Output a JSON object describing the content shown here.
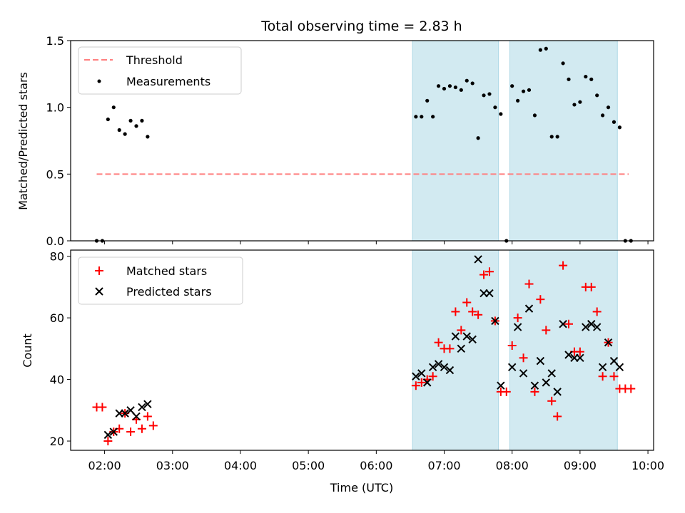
{
  "chart_data": [
    {
      "type": "scatter",
      "title": "Total observing time = 2.83 h",
      "ylabel": "Matched/Predicted stars",
      "ylim": [
        0,
        1.5
      ],
      "yticks": [
        "0.0",
        "0.5",
        "1.0",
        "1.5"
      ],
      "shaded_intervals": [
        [
          "06:32",
          "07:48"
        ],
        [
          "07:58",
          "09:33"
        ]
      ],
      "shade_color": "#add8e6",
      "threshold": {
        "name": "Threshold",
        "y": 0.5,
        "x_range": [
          "01:53",
          "09:43"
        ],
        "color": "#ff7f7f"
      },
      "series": [
        {
          "name": "Measurements",
          "marker": "dot",
          "color": "#000000",
          "points": [
            [
              "01:53",
              0.0
            ],
            [
              "01:58",
              0.0
            ],
            [
              "02:03",
              0.91
            ],
            [
              "02:08",
              1.0
            ],
            [
              "02:13",
              0.83
            ],
            [
              "02:18",
              0.8
            ],
            [
              "02:23",
              0.9
            ],
            [
              "02:28",
              0.86
            ],
            [
              "02:33",
              0.9
            ],
            [
              "02:38",
              0.78
            ],
            [
              "06:35",
              0.93
            ],
            [
              "06:40",
              0.93
            ],
            [
              "06:45",
              1.05
            ],
            [
              "06:50",
              0.93
            ],
            [
              "06:55",
              1.16
            ],
            [
              "07:00",
              1.14
            ],
            [
              "07:05",
              1.16
            ],
            [
              "07:10",
              1.15
            ],
            [
              "07:15",
              1.13
            ],
            [
              "07:20",
              1.2
            ],
            [
              "07:25",
              1.18
            ],
            [
              "07:30",
              0.77
            ],
            [
              "07:35",
              1.09
            ],
            [
              "07:40",
              1.1
            ],
            [
              "07:45",
              1.0
            ],
            [
              "07:50",
              0.95
            ],
            [
              "07:55",
              0.0
            ],
            [
              "08:00",
              1.16
            ],
            [
              "08:05",
              1.05
            ],
            [
              "08:10",
              1.12
            ],
            [
              "08:15",
              1.13
            ],
            [
              "08:20",
              0.94
            ],
            [
              "08:25",
              1.43
            ],
            [
              "08:30",
              1.44
            ],
            [
              "08:35",
              0.78
            ],
            [
              "08:40",
              0.78
            ],
            [
              "08:45",
              1.33
            ],
            [
              "08:50",
              1.21
            ],
            [
              "08:55",
              1.02
            ],
            [
              "09:00",
              1.04
            ],
            [
              "09:05",
              1.23
            ],
            [
              "09:10",
              1.21
            ],
            [
              "09:15",
              1.09
            ],
            [
              "09:20",
              0.94
            ],
            [
              "09:25",
              1.0
            ],
            [
              "09:30",
              0.89
            ],
            [
              "09:35",
              0.85
            ],
            [
              "09:40",
              0.0
            ],
            [
              "09:45",
              0.0
            ]
          ]
        }
      ],
      "legend": "top-left"
    },
    {
      "type": "scatter",
      "xlabel": "Time (UTC)",
      "ylabel": "Count",
      "xlim": [
        "01:30",
        "10:05"
      ],
      "xticks": [
        "02:00",
        "03:00",
        "04:00",
        "05:00",
        "06:00",
        "07:00",
        "08:00",
        "09:00",
        "10:00"
      ],
      "ylim": [
        17,
        82
      ],
      "yticks": [
        "20",
        "40",
        "60",
        "80"
      ],
      "shaded_intervals": [
        [
          "06:32",
          "07:48"
        ],
        [
          "07:58",
          "09:33"
        ]
      ],
      "shade_color": "#add8e6",
      "series": [
        {
          "name": "Matched stars",
          "marker": "plus",
          "color": "#ff0000",
          "points": [
            [
              "01:53",
              31
            ],
            [
              "01:58",
              31
            ],
            [
              "02:03",
              20
            ],
            [
              "02:08",
              23
            ],
            [
              "02:13",
              24
            ],
            [
              "02:18",
              29
            ],
            [
              "02:23",
              23
            ],
            [
              "02:28",
              27
            ],
            [
              "02:33",
              24
            ],
            [
              "02:38",
              28
            ],
            [
              "02:43",
              25
            ],
            [
              "06:35",
              38
            ],
            [
              "06:40",
              39
            ],
            [
              "06:45",
              40
            ],
            [
              "06:50",
              41
            ],
            [
              "06:55",
              52
            ],
            [
              "07:00",
              50
            ],
            [
              "07:05",
              50
            ],
            [
              "07:10",
              62
            ],
            [
              "07:15",
              56
            ],
            [
              "07:20",
              65
            ],
            [
              "07:25",
              62
            ],
            [
              "07:30",
              61
            ],
            [
              "07:35",
              74
            ],
            [
              "07:40",
              75
            ],
            [
              "07:45",
              59
            ],
            [
              "07:50",
              36
            ],
            [
              "07:55",
              36
            ],
            [
              "08:00",
              51
            ],
            [
              "08:05",
              60
            ],
            [
              "08:10",
              47
            ],
            [
              "08:15",
              71
            ],
            [
              "08:20",
              36
            ],
            [
              "08:25",
              66
            ],
            [
              "08:30",
              56
            ],
            [
              "08:35",
              33
            ],
            [
              "08:40",
              28
            ],
            [
              "08:45",
              77
            ],
            [
              "08:50",
              58
            ],
            [
              "08:55",
              49
            ],
            [
              "09:00",
              49
            ],
            [
              "09:05",
              70
            ],
            [
              "09:10",
              70
            ],
            [
              "09:15",
              62
            ],
            [
              "09:20",
              41
            ],
            [
              "09:25",
              52
            ],
            [
              "09:30",
              41
            ],
            [
              "09:35",
              37
            ],
            [
              "09:40",
              37
            ],
            [
              "09:45",
              37
            ]
          ]
        },
        {
          "name": "Predicted stars",
          "marker": "x",
          "color": "#000000",
          "points": [
            [
              "02:03",
              22
            ],
            [
              "02:08",
              23
            ],
            [
              "02:13",
              29
            ],
            [
              "02:18",
              29
            ],
            [
              "02:23",
              30
            ],
            [
              "02:28",
              28
            ],
            [
              "02:33",
              31
            ],
            [
              "02:38",
              32
            ],
            [
              "06:35",
              41
            ],
            [
              "06:40",
              42
            ],
            [
              "06:45",
              39
            ],
            [
              "06:50",
              44
            ],
            [
              "06:55",
              45
            ],
            [
              "07:00",
              44
            ],
            [
              "07:05",
              43
            ],
            [
              "07:10",
              54
            ],
            [
              "07:15",
              50
            ],
            [
              "07:20",
              54
            ],
            [
              "07:25",
              53
            ],
            [
              "07:30",
              79
            ],
            [
              "07:35",
              68
            ],
            [
              "07:40",
              68
            ],
            [
              "07:45",
              59
            ],
            [
              "07:50",
              38
            ],
            [
              "08:00",
              44
            ],
            [
              "08:05",
              57
            ],
            [
              "08:10",
              42
            ],
            [
              "08:15",
              63
            ],
            [
              "08:20",
              38
            ],
            [
              "08:25",
              46
            ],
            [
              "08:30",
              39
            ],
            [
              "08:35",
              42
            ],
            [
              "08:40",
              36
            ],
            [
              "08:45",
              58
            ],
            [
              "08:50",
              48
            ],
            [
              "08:55",
              47
            ],
            [
              "09:00",
              47
            ],
            [
              "09:05",
              57
            ],
            [
              "09:10",
              58
            ],
            [
              "09:15",
              57
            ],
            [
              "09:20",
              44
            ],
            [
              "09:25",
              52
            ],
            [
              "09:30",
              46
            ],
            [
              "09:35",
              44
            ]
          ]
        }
      ],
      "legend": "top-left"
    }
  ]
}
